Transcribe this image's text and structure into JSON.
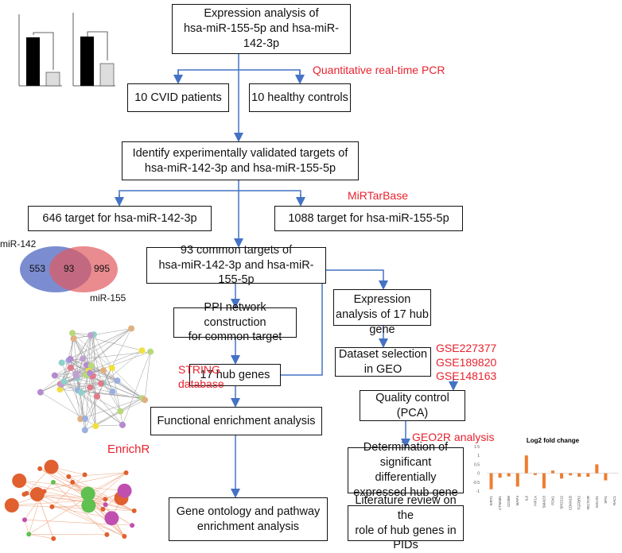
{
  "boxes": {
    "expression": "Expression analysis of\nhsa-miR-155-5p and hsa-miR-142-3p",
    "cvid": "10 CVID patients",
    "healthy": "10 healthy controls",
    "identify": "Identify experimentally validated targets of\nhsa-miR-142-3p and hsa-miR-155-5p",
    "t142": "646 target for hsa-miR-142-3p",
    "t155": "1088 target for hsa-miR-155-5p",
    "common": "93 common targets of\nhsa-miR-142-3p and hsa-miR-155-5p",
    "ppi": "PPI network construction\nfor common target",
    "hub": "17 hub genes",
    "functional": "Functional enrichment analysis",
    "go": "Gene ontology and pathway\nenrichment analysis",
    "expr_hub": "Expression\nanalysis of 17 hub\ngene",
    "dataset": "Dataset selection\nin GEO",
    "qc": "Quality control\n(PCA)",
    "determination": "Determination of\nsignificant differentially\nexpressed hub gene",
    "literature": "Literature review on the\nrole of hub genes in PIDs"
  },
  "labels": {
    "qpcr": "Quantitative real-time PCR",
    "mirtarbase": "MiRTarBase",
    "string": "STRING\ndatabase",
    "gse": "GSE227377\nGSE189820\nGSE148163",
    "geo2r": "GEO2R analysis",
    "enrichr": "EnrichR"
  },
  "venn": {
    "left_label": "miR-142",
    "right_label": "miR-155",
    "left_only": "553",
    "both": "93",
    "right_only": "995"
  },
  "colors": {
    "arrow": "#4472c4",
    "red": "#e8232e",
    "bar": "#ed7d31"
  },
  "fold_change_chart": {
    "type": "bar",
    "title": "Log2 fold change",
    "ylim": [
      -1,
      1.5
    ],
    "yticks": [
      "1.5",
      "1",
      "0.5",
      "0",
      "-0.5",
      "-1"
    ],
    "categories": [
      "SIRT1",
      "CTNNB1",
      "CD300",
      "MAP4",
      "IL6",
      "HIF1A",
      "SMAD3",
      "PDK1",
      "SPD212",
      "CDKN1B",
      "TGFBR2",
      "RICTOR",
      "SOCS1",
      "SPI1",
      "RAC1"
    ],
    "values": [
      -0.9,
      -0.25,
      -0.18,
      -0.75,
      1.0,
      -0.1,
      -0.85,
      0.15,
      -0.3,
      -0.12,
      -0.2,
      -0.2,
      0.5,
      -0.4,
      0
    ]
  }
}
